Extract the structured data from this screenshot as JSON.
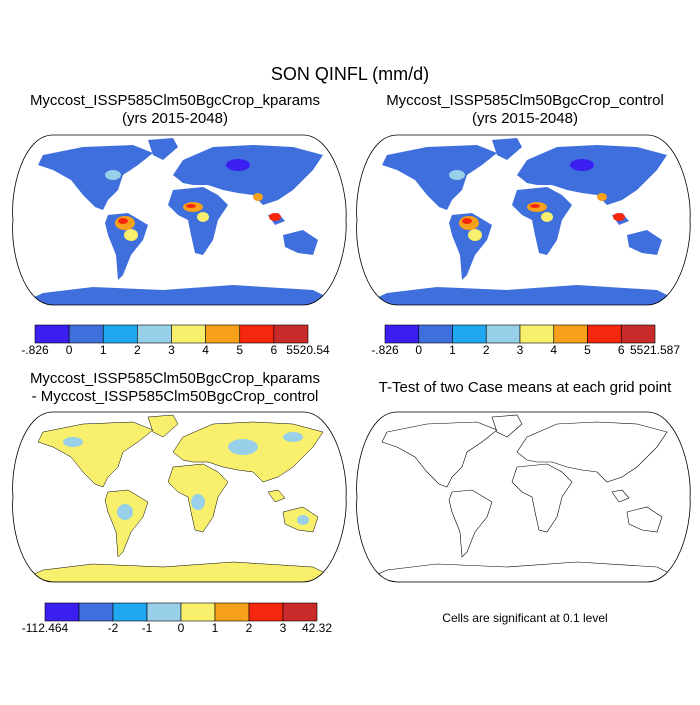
{
  "title": "SON QINFL (mm/d)",
  "panels": [
    {
      "title": [
        "Myccost_ISSP585Clm50BgcCrop_kparams",
        "(yrs 2015-2048)"
      ],
      "colorbar": {
        "colors": [
          "#3a1ff0",
          "#3e6fdc",
          "#1fa7f0",
          "#98cfe9",
          "#f8ef6c",
          "#f6a01b",
          "#f5270d",
          "#c92a2a"
        ],
        "labels": [
          "-.826",
          "0",
          "1",
          "2",
          "3",
          "4",
          "5",
          "6",
          "5520.54"
        ]
      }
    },
    {
      "title": [
        "Myccost_ISSP585Clm50BgcCrop_control",
        "(yrs 2015-2048)"
      ],
      "colorbar": {
        "colors": [
          "#3a1ff0",
          "#3e6fdc",
          "#1fa7f0",
          "#98cfe9",
          "#f8ef6c",
          "#f6a01b",
          "#f5270d",
          "#c92a2a"
        ],
        "labels": [
          "-.826",
          "0",
          "1",
          "2",
          "3",
          "4",
          "5",
          "6",
          "5521.587"
        ]
      }
    },
    {
      "title": [
        "Myccost_ISSP585Clm50BgcCrop_kparams",
        "- Myccost_ISSP585Clm50BgcCrop_control"
      ],
      "colorbar": {
        "colors": [
          "#3a1ff0",
          "#3e6fdc",
          "#1fa7f0",
          "#98cfe9",
          "#f8ef6c",
          "#f6a01b",
          "#f5270d",
          "#c92a2a"
        ],
        "labels": [
          "-112.464",
          null,
          "-2",
          "-1",
          "0",
          "1",
          "2",
          "3",
          "42.32"
        ]
      }
    },
    {
      "title": [
        "T-Test of two Case means at each grid point"
      ],
      "note": "Cells are significant at 0.1 level"
    }
  ]
}
